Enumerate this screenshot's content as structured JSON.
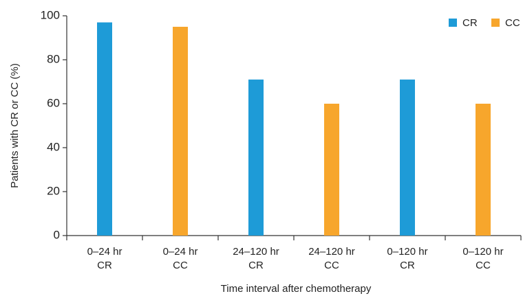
{
  "chart_data": {
    "type": "bar",
    "x_label": "Time interval after chemotherapy",
    "y_label": "Patients with CR or CC (%)",
    "categories": [
      [
        "0–24 hr",
        "CR"
      ],
      [
        "0–24 hr",
        "CC"
      ],
      [
        "24–120 hr",
        "CR"
      ],
      [
        "24–120 hr",
        "CC"
      ],
      [
        "0–120 hr",
        "CR"
      ],
      [
        "0–120 hr",
        "CC"
      ]
    ],
    "series": [
      {
        "name": "CR",
        "color": "#1e9bd7",
        "values": [
          97,
          null,
          71,
          null,
          71,
          null
        ]
      },
      {
        "name": "CC",
        "color": "#f7a62c",
        "values": [
          null,
          95,
          null,
          60,
          null,
          60
        ]
      }
    ],
    "ylim": [
      0,
      100
    ],
    "yticks": [
      0,
      20,
      40,
      60,
      80,
      100
    ],
    "grid": false,
    "legend": "top-right"
  }
}
